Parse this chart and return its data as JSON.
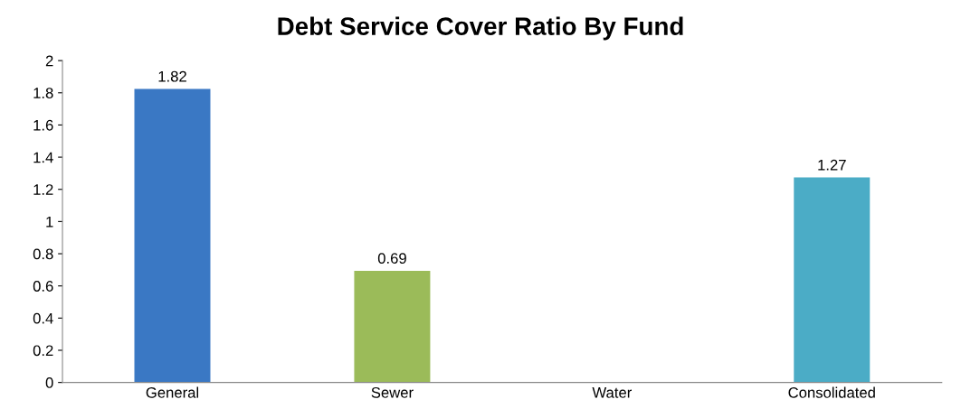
{
  "chart_data": {
    "type": "bar",
    "title": "Debt Service Cover Ratio By Fund",
    "categories": [
      "General",
      "Sewer",
      "Water",
      "Consolidated"
    ],
    "values": [
      1.82,
      0.69,
      null,
      1.27
    ],
    "colors": [
      "#3a78c4",
      "#9bbb59",
      "#4bacc6",
      "#4bacc6"
    ],
    "ylim": [
      0,
      2
    ],
    "yticks": [
      0,
      0.2,
      0.4,
      0.6,
      0.8,
      1,
      1.2,
      1.4,
      1.6,
      1.8,
      2
    ],
    "grid": false,
    "data_labels": true
  }
}
